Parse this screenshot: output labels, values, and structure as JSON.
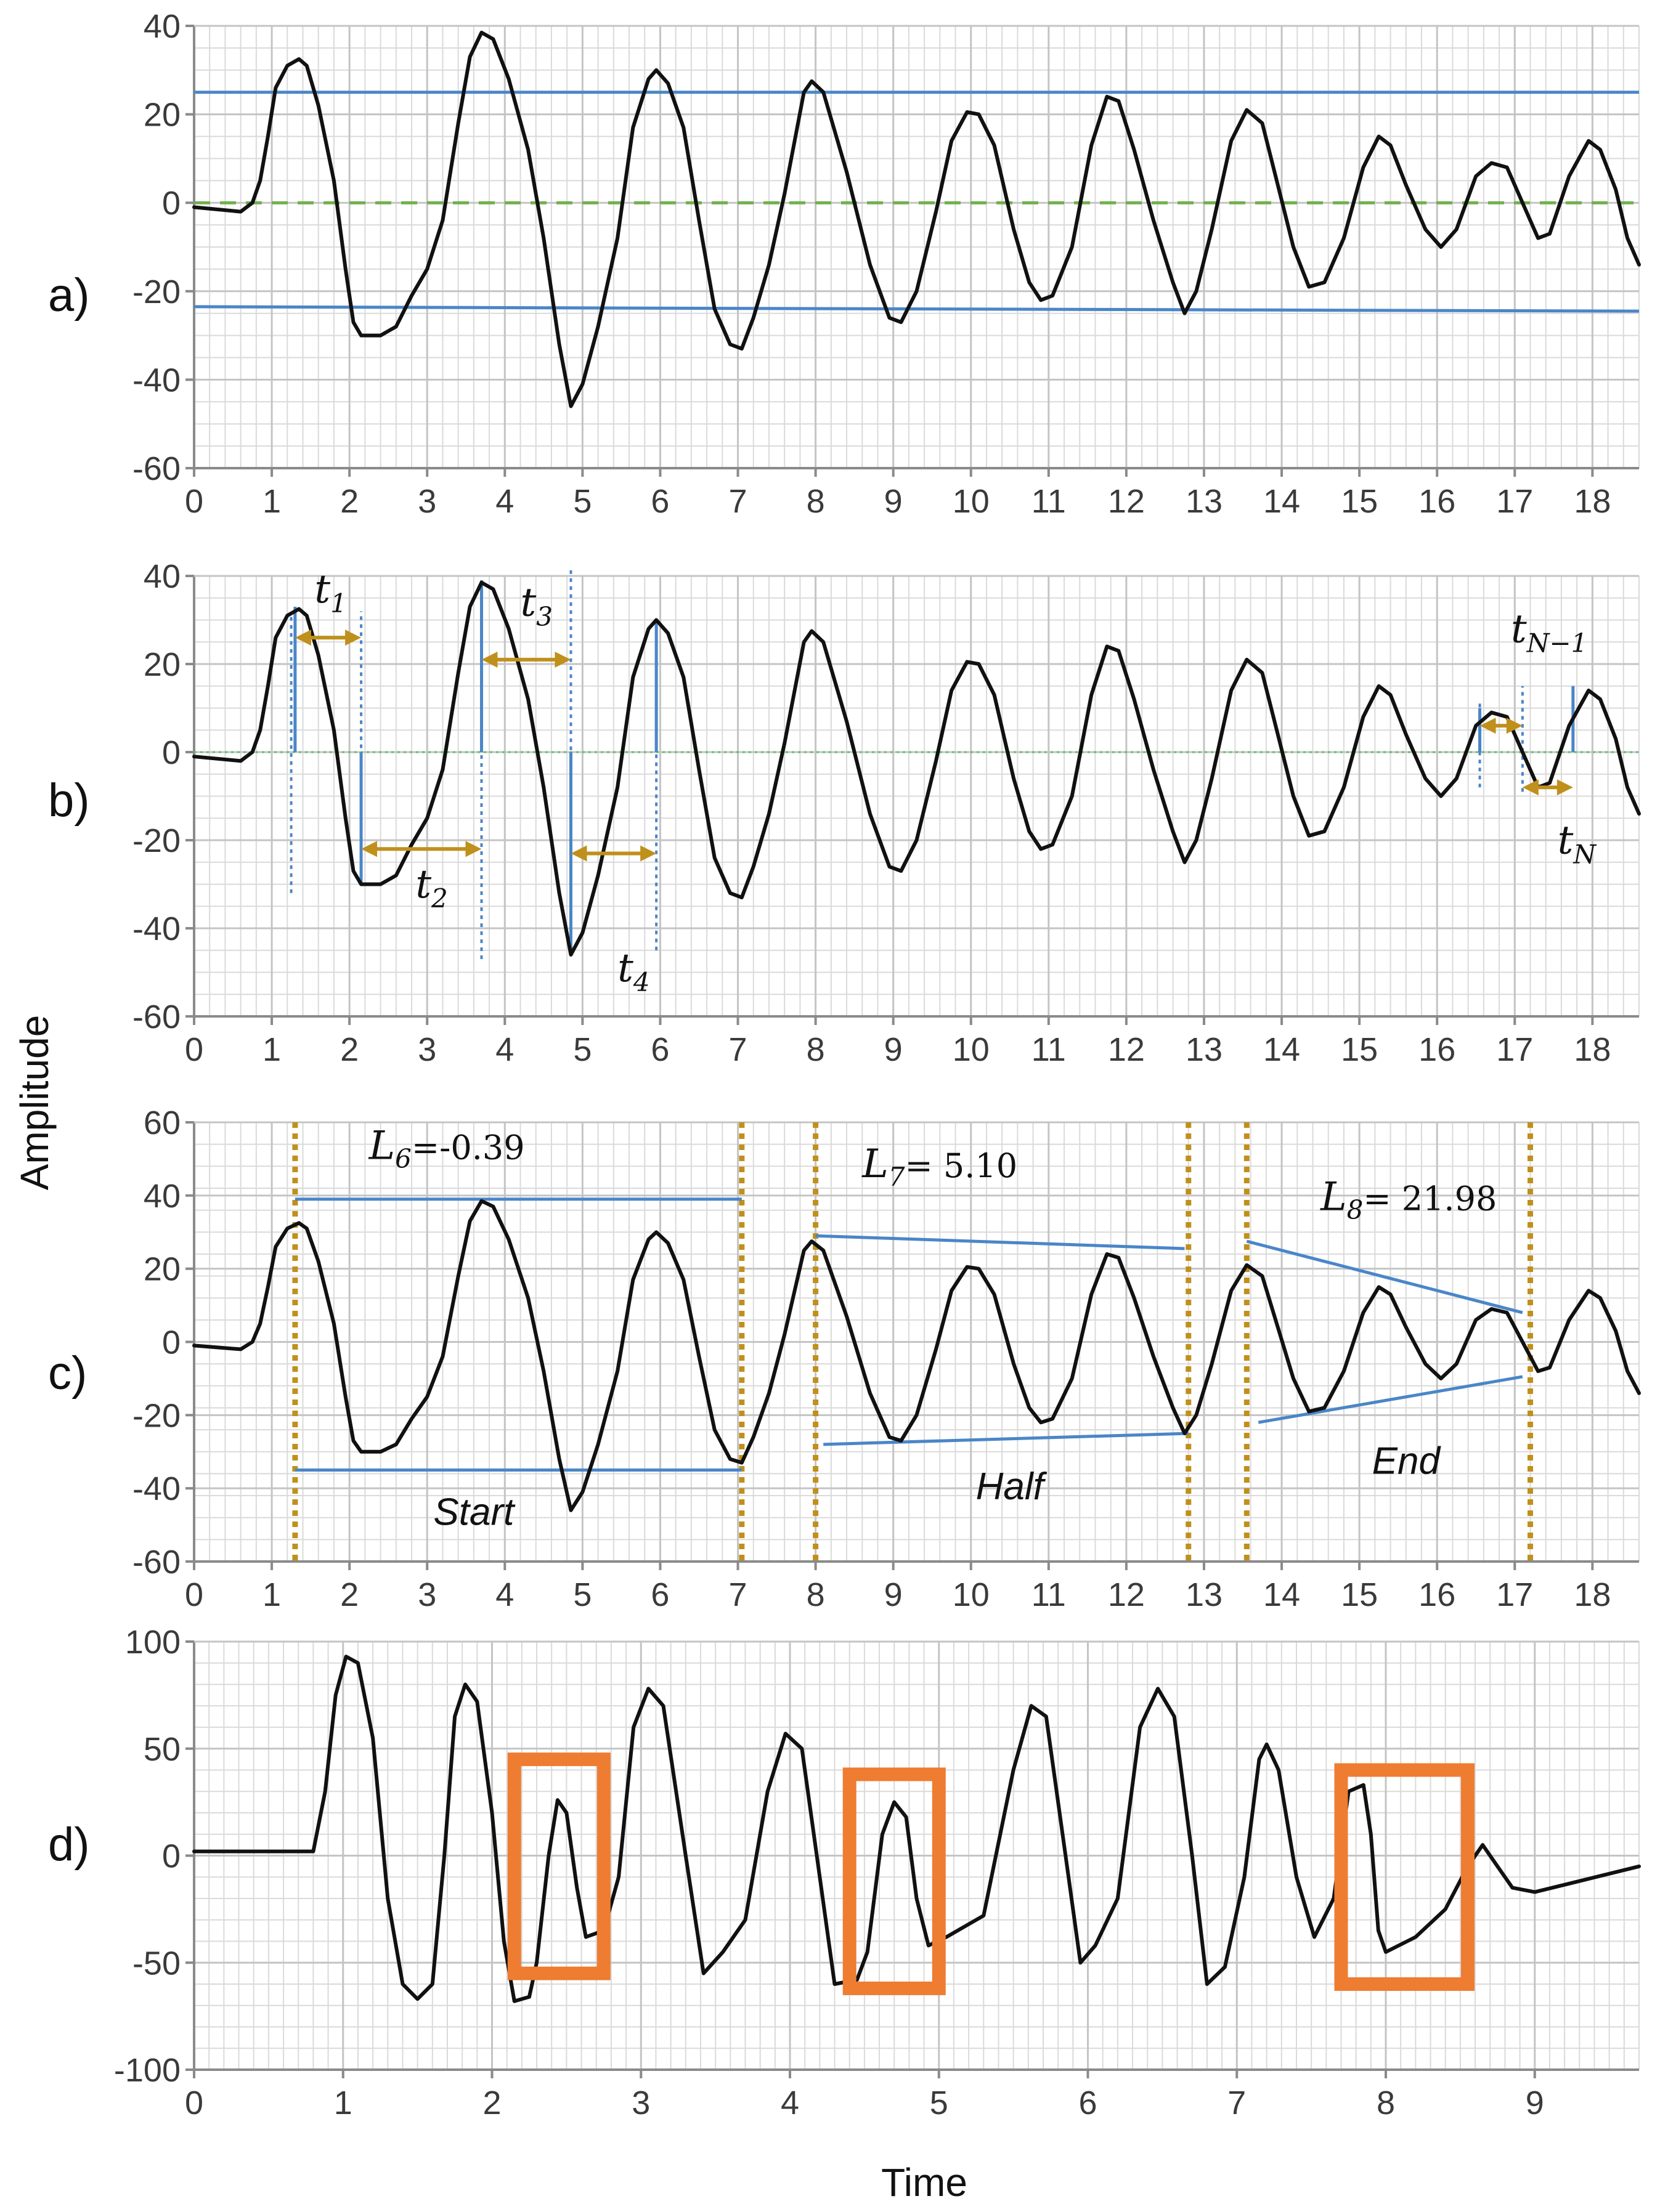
{
  "figure": {
    "ylabel": "Amplitude",
    "xlabel": "Time"
  },
  "colors": {
    "signal": "#111111",
    "bound": "#4a86c8",
    "zero_dash": "#6fb04a",
    "zero_dot": "#5fbf6a",
    "arrow": "#c0901c",
    "window": "#c0901c",
    "box": "#ee7c31",
    "grid_minor": "#dadada",
    "grid_major": "#c4c4c4",
    "frame": "#8a8a8a"
  },
  "chart_data": [
    {
      "id": "a",
      "type": "line",
      "panel_label": "a)",
      "xlim": [
        0,
        18.6
      ],
      "ylim": [
        -60,
        40
      ],
      "xticks": [
        0,
        1,
        2,
        3,
        4,
        5,
        6,
        7,
        8,
        9,
        10,
        11,
        12,
        13,
        14,
        15,
        16,
        17,
        18
      ],
      "yticks": [
        40,
        20,
        0,
        -20,
        -40,
        -60
      ],
      "signal": {
        "name": "amplitude",
        "points": [
          [
            0,
            -1
          ],
          [
            0.6,
            -2
          ],
          [
            0.75,
            0
          ],
          [
            0.85,
            5
          ],
          [
            0.95,
            15
          ],
          [
            1.05,
            26
          ],
          [
            1.2,
            31
          ],
          [
            1.35,
            32.5
          ],
          [
            1.45,
            31
          ],
          [
            1.6,
            22
          ],
          [
            1.8,
            5
          ],
          [
            1.95,
            -15
          ],
          [
            2.05,
            -27
          ],
          [
            2.15,
            -30
          ],
          [
            2.4,
            -30
          ],
          [
            2.6,
            -28
          ],
          [
            2.8,
            -21
          ],
          [
            3.0,
            -15
          ],
          [
            3.2,
            -4
          ],
          [
            3.4,
            18
          ],
          [
            3.55,
            33
          ],
          [
            3.7,
            38.5
          ],
          [
            3.85,
            37
          ],
          [
            4.05,
            28
          ],
          [
            4.3,
            12
          ],
          [
            4.5,
            -8
          ],
          [
            4.7,
            -32
          ],
          [
            4.85,
            -46
          ],
          [
            5.0,
            -41
          ],
          [
            5.2,
            -28
          ],
          [
            5.45,
            -8
          ],
          [
            5.65,
            17
          ],
          [
            5.85,
            28
          ],
          [
            5.95,
            30
          ],
          [
            6.1,
            27
          ],
          [
            6.3,
            17
          ],
          [
            6.5,
            -4
          ],
          [
            6.7,
            -24
          ],
          [
            6.9,
            -32
          ],
          [
            7.05,
            -33
          ],
          [
            7.2,
            -26
          ],
          [
            7.4,
            -14
          ],
          [
            7.6,
            2
          ],
          [
            7.85,
            25
          ],
          [
            7.95,
            27.5
          ],
          [
            8.1,
            25
          ],
          [
            8.4,
            7
          ],
          [
            8.7,
            -14
          ],
          [
            8.95,
            -26
          ],
          [
            9.1,
            -27
          ],
          [
            9.3,
            -20
          ],
          [
            9.55,
            -2
          ],
          [
            9.75,
            14
          ],
          [
            9.95,
            20.5
          ],
          [
            10.1,
            20
          ],
          [
            10.3,
            13
          ],
          [
            10.55,
            -6
          ],
          [
            10.75,
            -18
          ],
          [
            10.9,
            -22
          ],
          [
            11.05,
            -21
          ],
          [
            11.3,
            -10
          ],
          [
            11.55,
            13
          ],
          [
            11.75,
            24
          ],
          [
            11.9,
            23
          ],
          [
            12.1,
            12
          ],
          [
            12.35,
            -4
          ],
          [
            12.6,
            -18
          ],
          [
            12.75,
            -25
          ],
          [
            12.9,
            -20
          ],
          [
            13.1,
            -6
          ],
          [
            13.35,
            14
          ],
          [
            13.55,
            21
          ],
          [
            13.75,
            18
          ],
          [
            13.95,
            4
          ],
          [
            14.15,
            -10
          ],
          [
            14.35,
            -19
          ],
          [
            14.55,
            -18
          ],
          [
            14.8,
            -8
          ],
          [
            15.05,
            8
          ],
          [
            15.25,
            15
          ],
          [
            15.4,
            13
          ],
          [
            15.6,
            4
          ],
          [
            15.85,
            -6
          ],
          [
            16.05,
            -10
          ],
          [
            16.25,
            -6
          ],
          [
            16.5,
            6
          ],
          [
            16.7,
            9
          ],
          [
            16.9,
            8
          ],
          [
            17.1,
            0
          ],
          [
            17.3,
            -8
          ],
          [
            17.45,
            -7
          ],
          [
            17.7,
            6
          ],
          [
            17.95,
            14
          ],
          [
            18.1,
            12
          ],
          [
            18.3,
            3
          ],
          [
            18.45,
            -8
          ],
          [
            18.6,
            -14
          ]
        ]
      },
      "upper_bound": [
        [
          0,
          25
        ],
        [
          18.6,
          25
        ]
      ],
      "lower_bound": [
        [
          0,
          -23.5
        ],
        [
          18.6,
          -24.5
        ]
      ],
      "zero_line": [
        [
          0,
          0
        ],
        [
          18.6,
          0
        ]
      ]
    },
    {
      "id": "b",
      "type": "line",
      "panel_label": "b)",
      "xlim": [
        0,
        18.6
      ],
      "ylim": [
        -60,
        40
      ],
      "xticks": [
        0,
        1,
        2,
        3,
        4,
        5,
        6,
        7,
        8,
        9,
        10,
        11,
        12,
        13,
        14,
        15,
        16,
        17,
        18
      ],
      "yticks": [
        40,
        20,
        0,
        -20,
        -40,
        -60
      ],
      "extrema_lines": [
        {
          "x": 1.3,
          "from": 0,
          "to": 33
        },
        {
          "x": 2.15,
          "from": 0,
          "to": -30
        },
        {
          "x": 3.7,
          "from": 0,
          "to": 39
        },
        {
          "x": 4.85,
          "from": 0,
          "to": -46
        },
        {
          "x": 5.95,
          "from": 0,
          "to": 30
        },
        {
          "x": 16.55,
          "from": 0,
          "to": 10
        },
        {
          "x": 17.75,
          "from": 0,
          "to": 15
        }
      ],
      "crossing_lines": [
        {
          "x": 1.25,
          "from": -32,
          "to": 31
        },
        {
          "x": 2.15,
          "from": -30,
          "to": 32
        },
        {
          "x": 3.7,
          "from": -47,
          "to": 39
        },
        {
          "x": 4.85,
          "from": -45,
          "to": 42
        },
        {
          "x": 5.95,
          "from": -45,
          "to": 30
        },
        {
          "x": 16.55,
          "from": -8,
          "to": 12
        },
        {
          "x": 17.1,
          "from": -9,
          "to": 15
        }
      ],
      "intervals": [
        {
          "label": "t",
          "sub": "1",
          "x0": 1.3,
          "x1": 2.15,
          "y": 26,
          "label_x": 1.55,
          "label_y": 34
        },
        {
          "label": "t",
          "sub": "2",
          "x0": 2.15,
          "x1": 3.7,
          "y": -22,
          "label_x": 2.85,
          "label_y": -33
        },
        {
          "label": "t",
          "sub": "3",
          "x0": 3.7,
          "x1": 4.85,
          "y": 21,
          "label_x": 4.2,
          "label_y": 31
        },
        {
          "label": "t",
          "sub": "4",
          "x0": 4.85,
          "x1": 5.95,
          "y": -23,
          "label_x": 5.45,
          "label_y": -52
        },
        {
          "label": "t",
          "sub": "N−1",
          "x0": 16.55,
          "x1": 17.1,
          "y": 6,
          "label_x": 16.95,
          "label_y": 25
        },
        {
          "label": "t",
          "sub": "N",
          "x0": 17.1,
          "x1": 17.75,
          "y": -8,
          "label_x": 17.55,
          "label_y": -23
        }
      ]
    },
    {
      "id": "c",
      "type": "line",
      "panel_label": "c)",
      "xlim": [
        0,
        18.6
      ],
      "ylim": [
        -60,
        60
      ],
      "xticks": [
        0,
        1,
        2,
        3,
        4,
        5,
        6,
        7,
        8,
        9,
        10,
        11,
        12,
        13,
        14,
        15,
        16,
        17,
        18
      ],
      "yticks": [
        60,
        40,
        20,
        0,
        -20,
        -40,
        -60
      ],
      "windows": [
        {
          "x0": 1.3,
          "x1": 7.05
        },
        {
          "x0": 8.0,
          "x1": 12.8
        },
        {
          "x0": 13.55,
          "x1": 17.2
        }
      ],
      "envelopes": [
        {
          "upper": [
            [
              1.3,
              39
            ],
            [
              7.05,
              39
            ]
          ],
          "lower": [
            [
              1.3,
              -35
            ],
            [
              7.05,
              -35
            ]
          ]
        },
        {
          "upper": [
            [
              8.0,
              29
            ],
            [
              12.75,
              25.5
            ]
          ],
          "lower": [
            [
              8.1,
              -28
            ],
            [
              12.8,
              -25
            ]
          ]
        },
        {
          "upper": [
            [
              13.55,
              27.5
            ],
            [
              17.1,
              8
            ]
          ],
          "lower": [
            [
              13.7,
              -22
            ],
            [
              17.1,
              -9.5
            ]
          ]
        }
      ],
      "annotations": [
        {
          "var": "L",
          "sub": "6",
          "text": "=-0.39",
          "x": 2.25,
          "y": 50
        },
        {
          "var": "L",
          "sub": "7",
          "text": "= 5.10",
          "x": 8.6,
          "y": 45
        },
        {
          "var": "L",
          "sub": "8",
          "text": "= 21.98",
          "x": 14.5,
          "y": 36
        },
        {
          "word": "Start",
          "x": 3.6,
          "y": -50
        },
        {
          "word": "Half",
          "x": 10.5,
          "y": -43
        },
        {
          "word": "End",
          "x": 15.6,
          "y": -36
        }
      ]
    },
    {
      "id": "d",
      "type": "line",
      "panel_label": "d)",
      "xlim": [
        0,
        9.7
      ],
      "ylim": [
        -100,
        100
      ],
      "xticks": [
        0,
        1,
        2,
        3,
        4,
        5,
        6,
        7,
        8,
        9
      ],
      "yticks": [
        100,
        50,
        0,
        -50,
        -100
      ],
      "signal": {
        "name": "amplitude",
        "points": [
          [
            0,
            2
          ],
          [
            0.8,
            2
          ],
          [
            0.88,
            30
          ],
          [
            0.95,
            75
          ],
          [
            1.02,
            93
          ],
          [
            1.1,
            90
          ],
          [
            1.2,
            55
          ],
          [
            1.3,
            -20
          ],
          [
            1.4,
            -60
          ],
          [
            1.5,
            -67
          ],
          [
            1.6,
            -60
          ],
          [
            1.68,
            0
          ],
          [
            1.75,
            65
          ],
          [
            1.82,
            80
          ],
          [
            1.9,
            72
          ],
          [
            2.0,
            20
          ],
          [
            2.08,
            -40
          ],
          [
            2.15,
            -68
          ],
          [
            2.25,
            -66
          ],
          [
            2.3,
            -50
          ],
          [
            2.38,
            0
          ],
          [
            2.44,
            26
          ],
          [
            2.5,
            20
          ],
          [
            2.57,
            -15
          ],
          [
            2.63,
            -38
          ],
          [
            2.75,
            -35
          ],
          [
            2.85,
            -10
          ],
          [
            2.95,
            60
          ],
          [
            3.05,
            78
          ],
          [
            3.15,
            70
          ],
          [
            3.3,
            0
          ],
          [
            3.42,
            -55
          ],
          [
            3.55,
            -45
          ],
          [
            3.7,
            -30
          ],
          [
            3.85,
            30
          ],
          [
            3.97,
            57
          ],
          [
            4.08,
            50
          ],
          [
            4.2,
            -10
          ],
          [
            4.3,
            -60
          ],
          [
            4.45,
            -58
          ],
          [
            4.52,
            -45
          ],
          [
            4.62,
            10
          ],
          [
            4.7,
            25
          ],
          [
            4.78,
            18
          ],
          [
            4.85,
            -20
          ],
          [
            4.93,
            -42
          ],
          [
            5.05,
            -38
          ],
          [
            5.3,
            -28
          ],
          [
            5.5,
            40
          ],
          [
            5.62,
            70
          ],
          [
            5.72,
            65
          ],
          [
            5.85,
            0
          ],
          [
            5.95,
            -50
          ],
          [
            6.05,
            -42
          ],
          [
            6.2,
            -20
          ],
          [
            6.35,
            60
          ],
          [
            6.47,
            78
          ],
          [
            6.58,
            65
          ],
          [
            6.7,
            0
          ],
          [
            6.8,
            -60
          ],
          [
            6.92,
            -52
          ],
          [
            7.05,
            -10
          ],
          [
            7.15,
            45
          ],
          [
            7.2,
            52
          ],
          [
            7.28,
            40
          ],
          [
            7.4,
            -10
          ],
          [
            7.52,
            -38
          ],
          [
            7.65,
            -20
          ],
          [
            7.75,
            30
          ],
          [
            7.85,
            33
          ],
          [
            7.9,
            10
          ],
          [
            7.95,
            -35
          ],
          [
            8.0,
            -45
          ],
          [
            8.2,
            -38
          ],
          [
            8.4,
            -25
          ],
          [
            8.55,
            -5
          ],
          [
            8.65,
            5
          ],
          [
            8.75,
            -5
          ],
          [
            8.85,
            -15
          ],
          [
            9.0,
            -17
          ],
          [
            9.7,
            -5
          ]
        ]
      },
      "boxes": [
        {
          "x0": 2.15,
          "x1": 2.75,
          "y0": -55,
          "y1": 45
        },
        {
          "x0": 4.4,
          "x1": 5.0,
          "y0": -62,
          "y1": 38
        },
        {
          "x0": 7.7,
          "x1": 8.55,
          "y0": -60,
          "y1": 40
        }
      ]
    }
  ]
}
